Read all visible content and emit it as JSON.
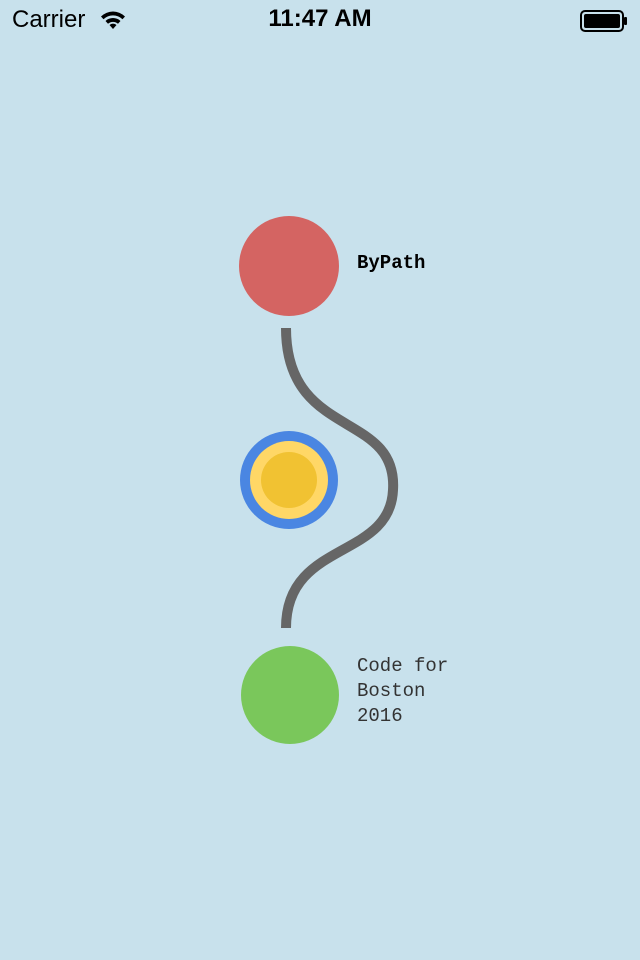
{
  "status_bar": {
    "carrier": "Carrier",
    "time": "11:47 AM",
    "wifi_icon": "wifi-icon",
    "battery_icon": "battery-icon"
  },
  "colors": {
    "background": "#c8e1ec",
    "start_dot": "#d46462",
    "middle_outer": "#4a86e2",
    "middle_ring": "#ffd766",
    "middle_core": "#f1c232",
    "end_dot": "#7ac75b",
    "path": "#666666"
  },
  "app": {
    "title": "ByPath",
    "footer_lines": [
      "Code for",
      "Boston",
      "2016"
    ]
  }
}
